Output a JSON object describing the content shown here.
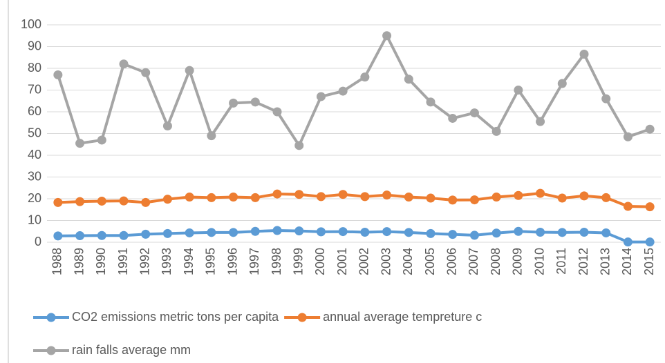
{
  "chart_data": {
    "type": "line",
    "categories": [
      "1988",
      "1989",
      "1990",
      "1991",
      "1992",
      "1993",
      "1994",
      "1995",
      "1996",
      "1997",
      "1998",
      "1999",
      "2000",
      "2001",
      "2002",
      "2003",
      "2004",
      "2005",
      "2006",
      "2007",
      "2008",
      "2009",
      "2010",
      "2011",
      "2012",
      "2013",
      "2014",
      "2015"
    ],
    "series": [
      {
        "name": "CO2 emissions metric tons per capita",
        "color": "#5b9bd5",
        "values": [
          2.9,
          3.0,
          3.1,
          3.1,
          3.7,
          4.0,
          4.3,
          4.5,
          4.5,
          5.0,
          5.4,
          5.2,
          4.8,
          4.9,
          4.6,
          4.9,
          4.5,
          4.0,
          3.6,
          3.2,
          4.2,
          5.0,
          4.6,
          4.5,
          4.6,
          4.3,
          0.1,
          0.1
        ]
      },
      {
        "name": "annual average tempreture c",
        "color": "#ed7d31",
        "values": [
          18.3,
          18.7,
          18.9,
          19.0,
          18.3,
          19.8,
          20.8,
          20.5,
          20.8,
          20.5,
          22.2,
          22.0,
          21.0,
          22.0,
          21.0,
          21.7,
          20.8,
          20.3,
          19.4,
          19.5,
          20.8,
          21.5,
          22.5,
          20.3,
          21.3,
          20.5,
          16.5,
          16.3
        ]
      },
      {
        "name": "rain falls average mm",
        "color": "#a5a5a5",
        "values": [
          77,
          45.5,
          47,
          82,
          78,
          53.5,
          79,
          49,
          64,
          64.5,
          60,
          44.5,
          67,
          69.5,
          76,
          95,
          75,
          64.5,
          57,
          59.5,
          51,
          70,
          55.5,
          73,
          86.5,
          66,
          48.5,
          52
        ]
      }
    ],
    "ylim": [
      0,
      100
    ],
    "yticks": [
      0,
      10,
      20,
      30,
      40,
      50,
      60,
      70,
      80,
      90,
      100
    ],
    "grid": true,
    "legend": "bottom"
  }
}
